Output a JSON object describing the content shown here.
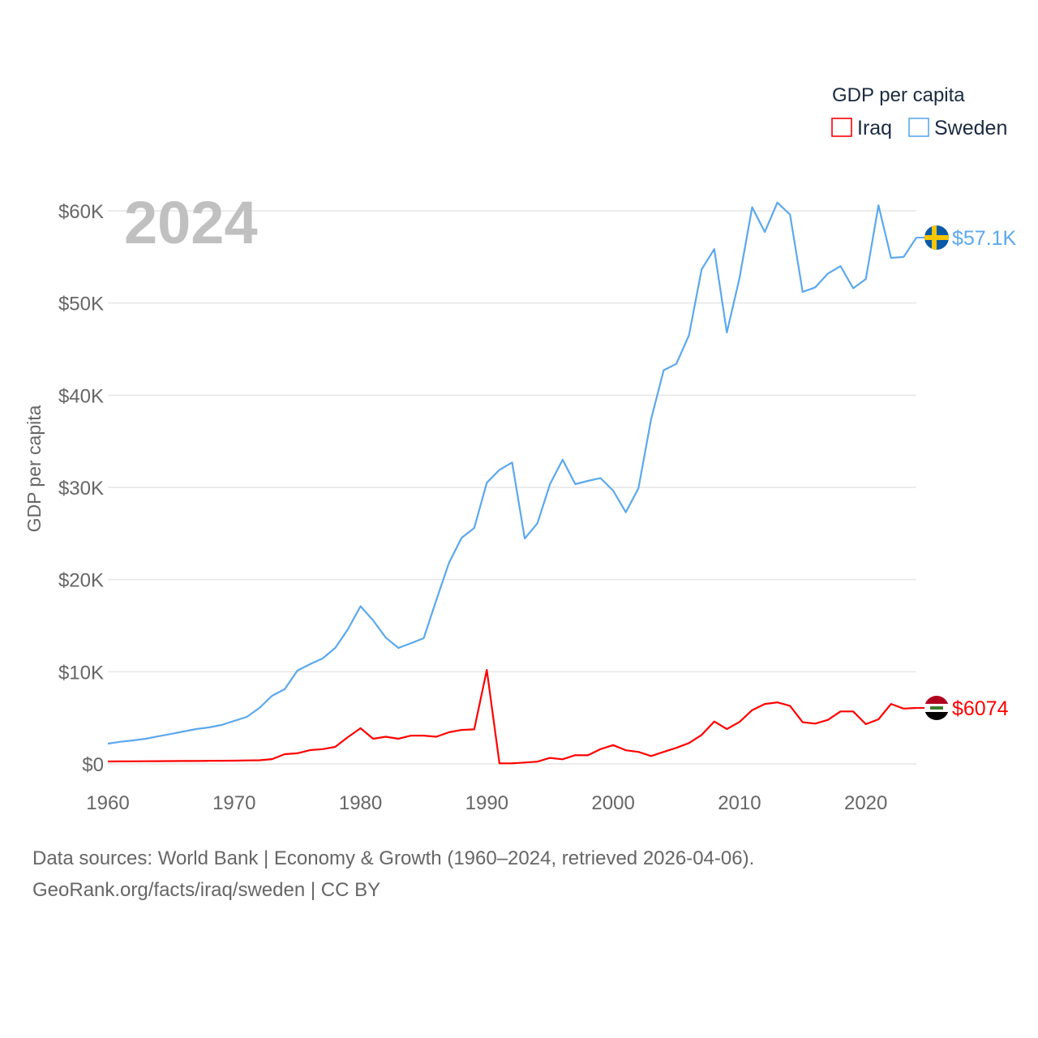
{
  "chart_data": {
    "type": "line",
    "title": "",
    "year_watermark": "2024",
    "ylabel": "GDP per capita",
    "xlabel": "",
    "legend_title": "GDP per capita",
    "legend_placement": "top-right",
    "xlim": [
      1960,
      2024
    ],
    "ylim": [
      0,
      60000
    ],
    "x_ticks": [
      1960,
      1970,
      1980,
      1990,
      2000,
      2010,
      2020
    ],
    "x_tick_labels": [
      "1960",
      "1970",
      "1980",
      "1990",
      "2000",
      "2010",
      "2020"
    ],
    "y_ticks": [
      0,
      10000,
      20000,
      30000,
      40000,
      50000,
      60000
    ],
    "y_tick_labels": [
      "$0",
      "$10K",
      "$20K",
      "$30K",
      "$40K",
      "$50K",
      "$60K"
    ],
    "grid": true,
    "x": [
      1960,
      1961,
      1962,
      1963,
      1964,
      1965,
      1966,
      1967,
      1968,
      1969,
      1970,
      1971,
      1972,
      1973,
      1974,
      1975,
      1976,
      1977,
      1978,
      1979,
      1980,
      1981,
      1982,
      1983,
      1984,
      1985,
      1986,
      1987,
      1988,
      1989,
      1990,
      1991,
      1992,
      1993,
      1994,
      1995,
      1996,
      1997,
      1998,
      1999,
      2000,
      2001,
      2002,
      2003,
      2004,
      2005,
      2006,
      2007,
      2008,
      2009,
      2010,
      2011,
      2012,
      2013,
      2014,
      2015,
      2016,
      2017,
      2018,
      2019,
      2020,
      2021,
      2022,
      2023,
      2024
    ],
    "series": [
      {
        "name": "Iraq",
        "color": "#ff0000",
        "end_label": "$6074",
        "flag": "iraq-flag",
        "values": [
          260,
          270,
          280,
          290,
          300,
          310,
          320,
          320,
          330,
          340,
          350,
          380,
          400,
          520,
          1060,
          1150,
          1500,
          1600,
          1850,
          2900,
          3870,
          2730,
          2950,
          2730,
          3070,
          3070,
          2950,
          3430,
          3690,
          3750,
          10200,
          60,
          60,
          150,
          250,
          650,
          500,
          950,
          930,
          1600,
          2040,
          1480,
          1300,
          850,
          1300,
          1740,
          2260,
          3140,
          4600,
          3780,
          4550,
          5830,
          6500,
          6680,
          6300,
          4520,
          4370,
          4780,
          5690,
          5690,
          4310,
          4840,
          6500,
          6000,
          6074
        ]
      },
      {
        "name": "Sweden",
        "color": "#5ba8ee",
        "end_label": "$57.1K",
        "flag": "sweden-flag",
        "values": [
          2200,
          2400,
          2550,
          2730,
          3000,
          3250,
          3520,
          3780,
          3960,
          4220,
          4660,
          5100,
          6070,
          7390,
          8100,
          10120,
          10820,
          11440,
          12580,
          14600,
          17100,
          15570,
          13700,
          12580,
          13100,
          13640,
          17760,
          21800,
          24530,
          25600,
          30500,
          31900,
          32700,
          24450,
          26100,
          30350,
          33000,
          30350,
          30700,
          31000,
          29650,
          27300,
          29900,
          37400,
          42700,
          43400,
          46500,
          53650,
          55850,
          46800,
          52700,
          60400,
          57700,
          60900,
          59600,
          51200,
          51700,
          53200,
          54000,
          51600,
          52600,
          60600,
          54900,
          55000,
          57100
        ]
      }
    ]
  },
  "footer": {
    "line1": "Data sources: World Bank | Economy & Growth (1960–2024, retrieved 2026-04-06).",
    "line2": "GeoRank.org/facts/iraq/sweden | CC BY"
  }
}
